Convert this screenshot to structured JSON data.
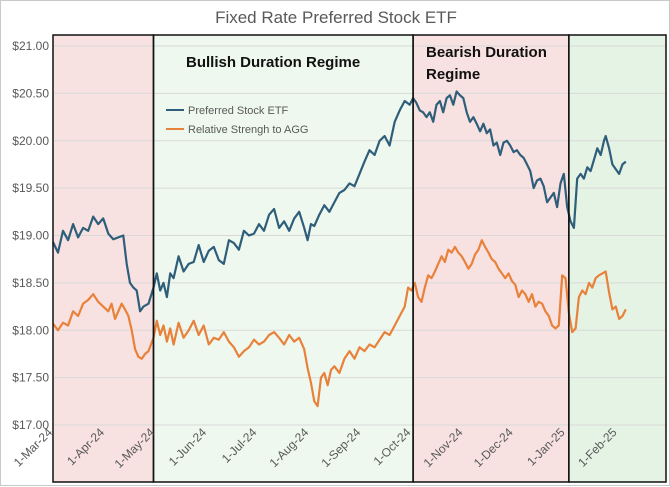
{
  "chart_data": {
    "type": "line",
    "title": "Fixed Rate Preferred Stock ETF",
    "xlabel": "",
    "ylabel": "",
    "ylim": [
      17.0,
      21.0
    ],
    "yticks": [
      "$17.00",
      "$17.50",
      "$18.00",
      "$18.50",
      "$19.00",
      "$19.50",
      "$20.00",
      "$20.50",
      "$21.00"
    ],
    "yvalues": [
      17.0,
      17.5,
      18.0,
      18.5,
      19.0,
      19.5,
      20.0,
      20.5,
      21.0
    ],
    "x_range_days": [
      0,
      366
    ],
    "xticks": [
      {
        "label": "1-Mar-24",
        "day": 0
      },
      {
        "label": "1-Apr-24",
        "day": 31
      },
      {
        "label": "1-May-24",
        "day": 61
      },
      {
        "label": "1-Jun-24",
        "day": 92
      },
      {
        "label": "1-Jul-24",
        "day": 122
      },
      {
        "label": "1-Aug-24",
        "day": 153
      },
      {
        "label": "1-Sep-24",
        "day": 184
      },
      {
        "label": "1-Oct-24",
        "day": 214
      },
      {
        "label": "1-Nov-24",
        "day": 245
      },
      {
        "label": "1-Dec-24",
        "day": 275
      },
      {
        "label": "1-Jan-25",
        "day": 306
      },
      {
        "label": "1-Feb-25",
        "day": 337
      }
    ],
    "regimes": [
      {
        "name": "pre-bull",
        "label": "",
        "start_day": 0,
        "end_day": 60,
        "color": "#f8e1e1"
      },
      {
        "name": "bullish",
        "label": "Bullish Duration Regime",
        "start_day": 60,
        "end_day": 215,
        "color": "#eef8ee"
      },
      {
        "name": "bearish",
        "label": "Bearish Duration Regime",
        "start_day": 215,
        "end_day": 308,
        "color": "#f8e1e1"
      },
      {
        "name": "post-bear",
        "label": "",
        "start_day": 308,
        "end_day": 366,
        "color": "#e4f3e4"
      }
    ],
    "series": [
      {
        "name": "Preferred Stock ETF",
        "color": "#2f5e7a",
        "points": [
          [
            0,
            18.93
          ],
          [
            3,
            18.82
          ],
          [
            6,
            19.05
          ],
          [
            9,
            18.95
          ],
          [
            12,
            19.12
          ],
          [
            15,
            18.98
          ],
          [
            18,
            19.08
          ],
          [
            21,
            19.05
          ],
          [
            24,
            19.2
          ],
          [
            27,
            19.12
          ],
          [
            30,
            19.18
          ],
          [
            33,
            19.02
          ],
          [
            36,
            18.96
          ],
          [
            39,
            18.98
          ],
          [
            42,
            19.0
          ],
          [
            44,
            18.7
          ],
          [
            46,
            18.5
          ],
          [
            48,
            18.45
          ],
          [
            50,
            18.42
          ],
          [
            52,
            18.2
          ],
          [
            54,
            18.25
          ],
          [
            57,
            18.28
          ],
          [
            60,
            18.45
          ],
          [
            62,
            18.6
          ],
          [
            64,
            18.42
          ],
          [
            66,
            18.5
          ],
          [
            68,
            18.35
          ],
          [
            70,
            18.6
          ],
          [
            72,
            18.55
          ],
          [
            75,
            18.78
          ],
          [
            78,
            18.62
          ],
          [
            81,
            18.7
          ],
          [
            84,
            18.72
          ],
          [
            87,
            18.9
          ],
          [
            90,
            18.72
          ],
          [
            93,
            18.84
          ],
          [
            96,
            18.88
          ],
          [
            99,
            18.74
          ],
          [
            102,
            18.7
          ],
          [
            105,
            18.95
          ],
          [
            108,
            18.92
          ],
          [
            111,
            18.85
          ],
          [
            114,
            19.05
          ],
          [
            117,
            19.0
          ],
          [
            120,
            19.02
          ],
          [
            123,
            19.12
          ],
          [
            126,
            19.05
          ],
          [
            129,
            19.22
          ],
          [
            132,
            19.28
          ],
          [
            135,
            19.08
          ],
          [
            138,
            19.15
          ],
          [
            141,
            19.05
          ],
          [
            144,
            19.18
          ],
          [
            147,
            19.25
          ],
          [
            150,
            19.08
          ],
          [
            152,
            18.95
          ],
          [
            154,
            19.12
          ],
          [
            156,
            19.1
          ],
          [
            159,
            19.22
          ],
          [
            162,
            19.32
          ],
          [
            165,
            19.25
          ],
          [
            168,
            19.35
          ],
          [
            171,
            19.45
          ],
          [
            174,
            19.48
          ],
          [
            177,
            19.55
          ],
          [
            180,
            19.52
          ],
          [
            183,
            19.65
          ],
          [
            186,
            19.78
          ],
          [
            189,
            19.9
          ],
          [
            192,
            19.85
          ],
          [
            195,
            20.0
          ],
          [
            198,
            20.05
          ],
          [
            201,
            19.95
          ],
          [
            204,
            20.2
          ],
          [
            207,
            20.32
          ],
          [
            210,
            20.42
          ],
          [
            213,
            20.38
          ],
          [
            215,
            20.45
          ],
          [
            217,
            20.4
          ],
          [
            219,
            20.32
          ],
          [
            221,
            20.3
          ],
          [
            223,
            20.25
          ],
          [
            225,
            20.3
          ],
          [
            227,
            20.2
          ],
          [
            229,
            20.38
          ],
          [
            231,
            20.42
          ],
          [
            233,
            20.3
          ],
          [
            235,
            20.45
          ],
          [
            237,
            20.48
          ],
          [
            239,
            20.38
          ],
          [
            241,
            20.52
          ],
          [
            243,
            20.48
          ],
          [
            245,
            20.45
          ],
          [
            247,
            20.3
          ],
          [
            249,
            20.2
          ],
          [
            251,
            20.25
          ],
          [
            253,
            20.18
          ],
          [
            255,
            20.1
          ],
          [
            257,
            20.18
          ],
          [
            259,
            20.08
          ],
          [
            261,
            20.12
          ],
          [
            263,
            19.95
          ],
          [
            265,
            19.98
          ],
          [
            267,
            19.85
          ],
          [
            269,
            19.98
          ],
          [
            271,
            20.0
          ],
          [
            273,
            19.95
          ],
          [
            275,
            19.88
          ],
          [
            277,
            19.9
          ],
          [
            279,
            19.85
          ],
          [
            281,
            19.82
          ],
          [
            283,
            19.75
          ],
          [
            285,
            19.68
          ],
          [
            287,
            19.5
          ],
          [
            289,
            19.58
          ],
          [
            291,
            19.6
          ],
          [
            293,
            19.52
          ],
          [
            295,
            19.35
          ],
          [
            297,
            19.4
          ],
          [
            299,
            19.45
          ],
          [
            301,
            19.3
          ],
          [
            303,
            19.55
          ],
          [
            305,
            19.65
          ],
          [
            307,
            19.3
          ],
          [
            309,
            19.15
          ],
          [
            311,
            19.08
          ],
          [
            313,
            19.6
          ],
          [
            315,
            19.65
          ],
          [
            317,
            19.6
          ],
          [
            319,
            19.72
          ],
          [
            321,
            19.68
          ],
          [
            323,
            19.8
          ],
          [
            325,
            19.92
          ],
          [
            327,
            19.85
          ],
          [
            329,
            20.0
          ],
          [
            330,
            20.05
          ],
          [
            332,
            19.92
          ],
          [
            334,
            19.75
          ],
          [
            336,
            19.7
          ],
          [
            338,
            19.65
          ],
          [
            340,
            19.75
          ],
          [
            342,
            19.78
          ]
        ]
      },
      {
        "name": "Relative Strengh to AGG",
        "color": "#e8813a",
        "points": [
          [
            0,
            18.07
          ],
          [
            3,
            18.0
          ],
          [
            6,
            18.08
          ],
          [
            9,
            18.05
          ],
          [
            12,
            18.2
          ],
          [
            15,
            18.15
          ],
          [
            18,
            18.28
          ],
          [
            21,
            18.32
          ],
          [
            24,
            18.38
          ],
          [
            27,
            18.3
          ],
          [
            30,
            18.25
          ],
          [
            33,
            18.2
          ],
          [
            35,
            18.28
          ],
          [
            37,
            18.12
          ],
          [
            39,
            18.2
          ],
          [
            41,
            18.28
          ],
          [
            43,
            18.22
          ],
          [
            45,
            18.15
          ],
          [
            47,
            18.0
          ],
          [
            49,
            17.8
          ],
          [
            51,
            17.72
          ],
          [
            53,
            17.7
          ],
          [
            55,
            17.75
          ],
          [
            57,
            17.78
          ],
          [
            60,
            17.92
          ],
          [
            62,
            18.1
          ],
          [
            64,
            17.95
          ],
          [
            66,
            18.05
          ],
          [
            68,
            17.88
          ],
          [
            70,
            18.02
          ],
          [
            72,
            17.85
          ],
          [
            75,
            18.08
          ],
          [
            78,
            17.92
          ],
          [
            81,
            18.0
          ],
          [
            84,
            18.1
          ],
          [
            87,
            17.95
          ],
          [
            90,
            18.05
          ],
          [
            93,
            17.85
          ],
          [
            96,
            17.92
          ],
          [
            99,
            17.9
          ],
          [
            102,
            17.98
          ],
          [
            105,
            17.88
          ],
          [
            108,
            17.82
          ],
          [
            111,
            17.72
          ],
          [
            114,
            17.78
          ],
          [
            117,
            17.82
          ],
          [
            120,
            17.9
          ],
          [
            123,
            17.85
          ],
          [
            126,
            17.88
          ],
          [
            129,
            17.95
          ],
          [
            132,
            17.98
          ],
          [
            135,
            17.92
          ],
          [
            138,
            17.85
          ],
          [
            141,
            17.95
          ],
          [
            144,
            17.88
          ],
          [
            147,
            17.92
          ],
          [
            150,
            17.8
          ],
          [
            152,
            17.6
          ],
          [
            154,
            17.45
          ],
          [
            156,
            17.25
          ],
          [
            158,
            17.2
          ],
          [
            160,
            17.5
          ],
          [
            162,
            17.55
          ],
          [
            164,
            17.42
          ],
          [
            166,
            17.58
          ],
          [
            168,
            17.62
          ],
          [
            171,
            17.55
          ],
          [
            174,
            17.7
          ],
          [
            177,
            17.78
          ],
          [
            180,
            17.7
          ],
          [
            183,
            17.82
          ],
          [
            186,
            17.78
          ],
          [
            189,
            17.85
          ],
          [
            192,
            17.82
          ],
          [
            195,
            17.9
          ],
          [
            198,
            17.98
          ],
          [
            201,
            17.95
          ],
          [
            204,
            18.05
          ],
          [
            207,
            18.15
          ],
          [
            210,
            18.25
          ],
          [
            212,
            18.45
          ],
          [
            214,
            18.42
          ],
          [
            216,
            18.5
          ],
          [
            218,
            18.35
          ],
          [
            220,
            18.3
          ],
          [
            222,
            18.45
          ],
          [
            224,
            18.58
          ],
          [
            226,
            18.55
          ],
          [
            228,
            18.62
          ],
          [
            230,
            18.7
          ],
          [
            232,
            18.78
          ],
          [
            234,
            18.72
          ],
          [
            236,
            18.85
          ],
          [
            238,
            18.82
          ],
          [
            240,
            18.88
          ],
          [
            242,
            18.82
          ],
          [
            244,
            18.78
          ],
          [
            246,
            18.72
          ],
          [
            248,
            18.65
          ],
          [
            250,
            18.7
          ],
          [
            252,
            18.8
          ],
          [
            254,
            18.85
          ],
          [
            256,
            18.95
          ],
          [
            258,
            18.88
          ],
          [
            260,
            18.82
          ],
          [
            262,
            18.75
          ],
          [
            264,
            18.72
          ],
          [
            266,
            18.65
          ],
          [
            268,
            18.6
          ],
          [
            270,
            18.55
          ],
          [
            272,
            18.6
          ],
          [
            274,
            18.52
          ],
          [
            276,
            18.48
          ],
          [
            278,
            18.35
          ],
          [
            280,
            18.42
          ],
          [
            282,
            18.38
          ],
          [
            284,
            18.3
          ],
          [
            286,
            18.38
          ],
          [
            288,
            18.25
          ],
          [
            290,
            18.3
          ],
          [
            292,
            18.28
          ],
          [
            294,
            18.2
          ],
          [
            296,
            18.15
          ],
          [
            298,
            18.05
          ],
          [
            300,
            18.02
          ],
          [
            302,
            18.05
          ],
          [
            304,
            18.58
          ],
          [
            306,
            18.55
          ],
          [
            308,
            18.18
          ],
          [
            310,
            17.98
          ],
          [
            312,
            18.02
          ],
          [
            314,
            18.35
          ],
          [
            316,
            18.42
          ],
          [
            318,
            18.38
          ],
          [
            320,
            18.5
          ],
          [
            322,
            18.45
          ],
          [
            324,
            18.55
          ],
          [
            326,
            18.58
          ],
          [
            328,
            18.6
          ],
          [
            330,
            18.62
          ],
          [
            332,
            18.4
          ],
          [
            334,
            18.22
          ],
          [
            336,
            18.25
          ],
          [
            338,
            18.12
          ],
          [
            340,
            18.15
          ],
          [
            342,
            18.22
          ]
        ]
      }
    ]
  }
}
